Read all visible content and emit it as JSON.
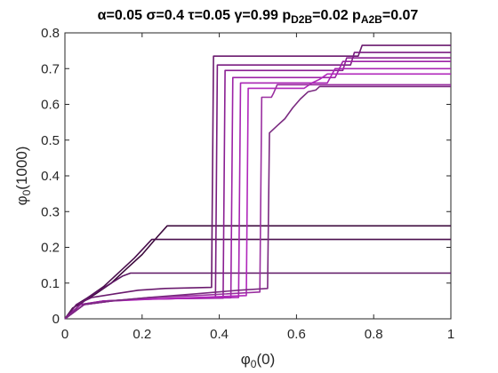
{
  "chart_data": {
    "type": "line",
    "title_parts": {
      "alpha": "α",
      "alpha_val": "=0.05 ",
      "sigma": "σ",
      "sigma_val": "=0.4 ",
      "tau": "τ",
      "tau_val": "=0.05 ",
      "gamma": "γ",
      "gamma_val": "=0.99 p",
      "sub1": "D2B",
      "mid": "=0.02 p",
      "sub2": "A2B",
      "end": "=0.07"
    },
    "xlabel": {
      "base": "φ",
      "sub": "0",
      "rest": "(0)"
    },
    "ylabel": {
      "base": "φ",
      "sub": "0",
      "rest": "(1000)"
    },
    "xlim": [
      0,
      1
    ],
    "ylim": [
      0,
      0.8
    ],
    "xticks": [
      "0",
      "0.2",
      "0.4",
      "0.6",
      "0.8",
      "1"
    ],
    "yticks": [
      "0",
      "0.1",
      "0.2",
      "0.3",
      "0.4",
      "0.5",
      "0.6",
      "0.7",
      "0.8"
    ],
    "grid": false,
    "series": [
      {
        "color": "#3d0a3d",
        "points": [
          [
            0,
            0
          ],
          [
            0.02,
            0.03
          ],
          [
            0.05,
            0.05
          ],
          [
            0.08,
            0.07
          ],
          [
            0.12,
            0.1
          ],
          [
            0.16,
            0.14
          ],
          [
            0.2,
            0.18
          ],
          [
            0.24,
            0.23
          ],
          [
            0.265,
            0.26
          ],
          [
            1,
            0.26
          ]
        ]
      },
      {
        "color": "#4a0f4d",
        "points": [
          [
            0,
            0
          ],
          [
            0.03,
            0.04
          ],
          [
            0.06,
            0.06
          ],
          [
            0.1,
            0.09
          ],
          [
            0.14,
            0.13
          ],
          [
            0.18,
            0.17
          ],
          [
            0.225,
            0.222
          ],
          [
            1,
            0.222
          ]
        ]
      },
      {
        "color": "#5c1563",
        "points": [
          [
            0,
            0
          ],
          [
            0.03,
            0.03
          ],
          [
            0.06,
            0.06
          ],
          [
            0.09,
            0.08
          ],
          [
            0.12,
            0.1
          ],
          [
            0.15,
            0.12
          ],
          [
            0.17,
            0.128
          ],
          [
            1,
            0.128
          ]
        ]
      },
      {
        "color": "#6a1a6e",
        "points": [
          [
            0,
            0
          ],
          [
            0.03,
            0.04
          ],
          [
            0.07,
            0.06
          ],
          [
            0.13,
            0.07
          ],
          [
            0.19,
            0.08
          ],
          [
            0.26,
            0.085
          ],
          [
            0.38,
            0.088
          ],
          [
            0.385,
            0.735
          ],
          [
            0.76,
            0.735
          ],
          [
            0.77,
            0.765
          ],
          [
            1,
            0.765
          ]
        ]
      },
      {
        "color": "#7a1c80",
        "points": [
          [
            0,
            0
          ],
          [
            0.04,
            0.04
          ],
          [
            0.1,
            0.05
          ],
          [
            0.2,
            0.055
          ],
          [
            0.3,
            0.057
          ],
          [
            0.39,
            0.058
          ],
          [
            0.395,
            0.71
          ],
          [
            0.74,
            0.71
          ],
          [
            0.75,
            0.745
          ],
          [
            1,
            0.745
          ]
        ]
      },
      {
        "color": "#8a1e92",
        "points": [
          [
            0,
            0
          ],
          [
            0.04,
            0.04
          ],
          [
            0.1,
            0.05
          ],
          [
            0.2,
            0.055
          ],
          [
            0.3,
            0.057
          ],
          [
            0.41,
            0.058
          ],
          [
            0.415,
            0.695
          ],
          [
            0.72,
            0.695
          ],
          [
            0.73,
            0.73
          ],
          [
            1,
            0.73
          ]
        ]
      },
      {
        "color": "#9c22a6",
        "points": [
          [
            0,
            0
          ],
          [
            0.05,
            0.04
          ],
          [
            0.1,
            0.05
          ],
          [
            0.2,
            0.055
          ],
          [
            0.3,
            0.057
          ],
          [
            0.43,
            0.059
          ],
          [
            0.435,
            0.675
          ],
          [
            0.7,
            0.675
          ],
          [
            0.72,
            0.72
          ],
          [
            1,
            0.72
          ]
        ]
      },
      {
        "color": "#a824b3",
        "points": [
          [
            0,
            0
          ],
          [
            0.05,
            0.04
          ],
          [
            0.12,
            0.05
          ],
          [
            0.22,
            0.055
          ],
          [
            0.34,
            0.058
          ],
          [
            0.45,
            0.06
          ],
          [
            0.455,
            0.66
          ],
          [
            0.68,
            0.66
          ],
          [
            0.7,
            0.7
          ],
          [
            1,
            0.7
          ]
        ]
      },
      {
        "color": "#b027bb",
        "points": [
          [
            0,
            0
          ],
          [
            0.05,
            0.04
          ],
          [
            0.12,
            0.05
          ],
          [
            0.22,
            0.056
          ],
          [
            0.34,
            0.06
          ],
          [
            0.47,
            0.065
          ],
          [
            0.475,
            0.645
          ],
          [
            0.62,
            0.645
          ],
          [
            0.64,
            0.66
          ],
          [
            0.66,
            0.67
          ],
          [
            0.68,
            0.685
          ],
          [
            1,
            0.685
          ]
        ]
      },
      {
        "color": "#9a2fa0",
        "points": [
          [
            0,
            0
          ],
          [
            0.05,
            0.04
          ],
          [
            0.12,
            0.05
          ],
          [
            0.22,
            0.06
          ],
          [
            0.34,
            0.065
          ],
          [
            0.505,
            0.075
          ],
          [
            0.51,
            0.62
          ],
          [
            0.535,
            0.62
          ],
          [
            0.54,
            0.63
          ],
          [
            0.55,
            0.655
          ],
          [
            1,
            0.655
          ]
        ]
      },
      {
        "color": "#7a2a80",
        "points": [
          [
            0,
            0
          ],
          [
            0.05,
            0.04
          ],
          [
            0.12,
            0.05
          ],
          [
            0.22,
            0.06
          ],
          [
            0.34,
            0.07
          ],
          [
            0.45,
            0.08
          ],
          [
            0.525,
            0.085
          ],
          [
            0.53,
            0.52
          ],
          [
            0.55,
            0.54
          ],
          [
            0.57,
            0.56
          ],
          [
            0.59,
            0.59
          ],
          [
            0.61,
            0.615
          ],
          [
            0.63,
            0.635
          ],
          [
            0.65,
            0.64
          ],
          [
            0.66,
            0.65
          ],
          [
            1,
            0.65
          ]
        ]
      }
    ]
  }
}
